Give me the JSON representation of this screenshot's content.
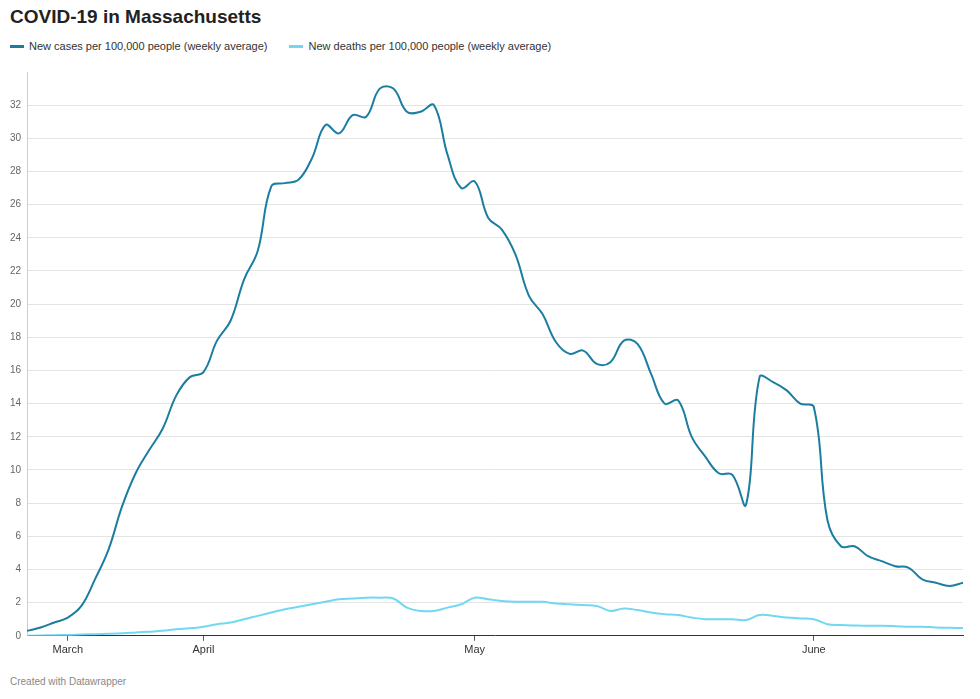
{
  "chart_data": {
    "type": "line",
    "title": "COVID-19 in Massachusetts",
    "caption": "Created with Datawrapper",
    "legend": "top-left",
    "grid": true,
    "categories": [
      null,
      null,
      null,
      "March",
      null,
      null,
      null,
      null,
      null,
      null,
      null,
      null,
      null,
      "April",
      null,
      null,
      null,
      null,
      null,
      null,
      null,
      null,
      null,
      null,
      null,
      null,
      null,
      null,
      null,
      null,
      null,
      null,
      null,
      "May",
      null,
      null,
      null,
      null,
      null,
      null,
      null,
      null,
      null,
      null,
      null,
      null,
      null,
      null,
      null,
      null,
      null,
      null,
      null,
      null,
      null,
      null,
      null,
      null,
      "June",
      null,
      null,
      null,
      null,
      null,
      null,
      null,
      null,
      null,
      null,
      null
    ],
    "series": [
      {
        "name": "New cases per 100,000 people (weekly average)",
        "color": "#1b7ea0",
        "values": [
          0.3,
          0.5,
          0.8,
          1.1,
          1.8,
          3.4,
          5.2,
          7.8,
          9.8,
          11.2,
          12.5,
          14.5,
          15.6,
          15.9,
          17.8,
          19.0,
          21.5,
          23.2,
          27.1,
          27.3,
          27.5,
          28.8,
          30.8,
          30.3,
          31.4,
          31.3,
          33.0,
          33.0,
          31.6,
          31.6,
          32.0,
          29.0,
          27.0,
          27.4,
          25.2,
          24.5,
          23.0,
          20.5,
          19.4,
          17.7,
          17.0,
          17.2,
          16.4,
          16.5,
          17.8,
          17.6,
          15.8,
          14.0,
          14.2,
          12.0,
          10.8,
          9.8,
          9.7,
          7.9,
          15.6,
          15.3,
          14.8,
          14.0,
          13.8,
          7.0,
          5.4,
          5.4,
          4.8,
          4.5,
          4.2,
          4.1,
          3.4,
          3.2,
          3.0,
          3.2
        ]
      },
      {
        "name": "New deaths per 100,000 people (weekly average)",
        "color": "#72d8f2",
        "values": [
          0,
          0.02,
          0.04,
          0.05,
          0.08,
          0.1,
          0.12,
          0.15,
          0.2,
          0.25,
          0.3,
          0.4,
          0.45,
          0.55,
          0.7,
          0.8,
          1.0,
          1.2,
          1.4,
          1.6,
          1.75,
          1.9,
          2.05,
          2.2,
          2.25,
          2.3,
          2.3,
          2.25,
          1.7,
          1.5,
          1.5,
          1.7,
          1.9,
          2.3,
          2.2,
          2.1,
          2.05,
          2.05,
          2.05,
          1.95,
          1.9,
          1.85,
          1.8,
          1.5,
          1.65,
          1.55,
          1.4,
          1.3,
          1.25,
          1.1,
          1.0,
          1.0,
          1.0,
          0.95,
          1.25,
          1.2,
          1.1,
          1.05,
          1.0,
          0.7,
          0.65,
          0.62,
          0.6,
          0.6,
          0.58,
          0.55,
          0.55,
          0.5,
          0.48,
          0.47
        ]
      }
    ],
    "ylim": [
      0,
      34
    ],
    "yticks": [
      0,
      2,
      4,
      6,
      8,
      10,
      12,
      14,
      16,
      18,
      20,
      22,
      24,
      26,
      28,
      30,
      32
    ]
  }
}
